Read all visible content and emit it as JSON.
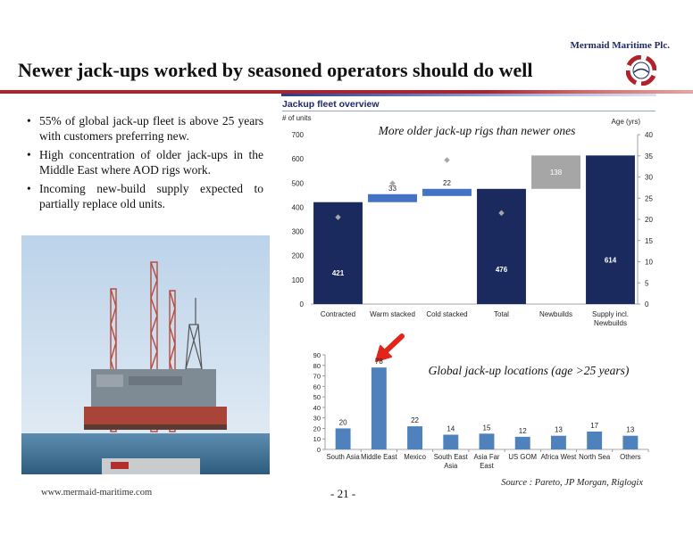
{
  "header": {
    "company": "Mermaid Maritime Plc.",
    "title": "Newer jack-ups worked by seasoned operators should do well",
    "accent_red": "#b0232a",
    "accent_navy": "#1f2a66"
  },
  "bullets": [
    "55% of global jack-up fleet is above 25 years with customers preferring new.",
    "High concentration of older jack-ups in the Middle East where AOD rigs work.",
    "Incoming new-build supply expected to partially replace old units."
  ],
  "footer": {
    "url": "www.mermaid-maritime.com",
    "page": "- 21 -",
    "source": "Source : Pareto, JP Morgan, Riglogix"
  },
  "chart_data": [
    {
      "type": "bar",
      "title": "Jackup fleet overview",
      "annotation": "More older jack-up rigs than newer ones",
      "ylabel": "# of units",
      "y2label": "Age (yrs)",
      "ylim": [
        0,
        700
      ],
      "y2lim": [
        0,
        40
      ],
      "yticks": [
        0,
        100,
        200,
        300,
        400,
        500,
        600,
        700
      ],
      "y2ticks": [
        0,
        5,
        10,
        15,
        20,
        25,
        30,
        35,
        40
      ],
      "categories": [
        "Contracted",
        "Warm stacked",
        "Cold stacked",
        "Total",
        "Newbuilds",
        "Supply incl. Newbuilds"
      ],
      "bars": [
        {
          "label": "421",
          "base": 0,
          "value": 421,
          "kind": "total"
        },
        {
          "label": "33",
          "base": 421,
          "value": 33,
          "kind": "step"
        },
        {
          "label": "22",
          "base": 454,
          "value": 22,
          "kind": "step"
        },
        {
          "label": "476",
          "base": 0,
          "value": 476,
          "kind": "total"
        },
        {
          "label": "138",
          "base": 476,
          "value": 138,
          "kind": "add"
        },
        {
          "label": "614",
          "base": 0,
          "value": 614,
          "kind": "total"
        }
      ],
      "age_markers": [
        20.5,
        28.5,
        34,
        21.5,
        null,
        null
      ],
      "colors": {
        "total": "#1b2a5e",
        "step": "#4472c4",
        "add": "#a6a6a6",
        "marker": "#a6a6a6"
      }
    },
    {
      "type": "bar",
      "annotation": "Global jack-up locations (age >25 years)",
      "ylim": [
        0,
        90
      ],
      "yticks": [
        0,
        10,
        20,
        30,
        40,
        50,
        60,
        70,
        80,
        90
      ],
      "categories": [
        "South Asia",
        "Middle East",
        "Mexico",
        "South East Asia",
        "Asia Far East",
        "US GOM",
        "Africa West",
        "North Sea",
        "Others"
      ],
      "values": [
        20,
        78,
        22,
        14,
        15,
        12,
        13,
        17,
        13
      ],
      "highlight": "Middle East",
      "color": "#4f81bd"
    }
  ]
}
